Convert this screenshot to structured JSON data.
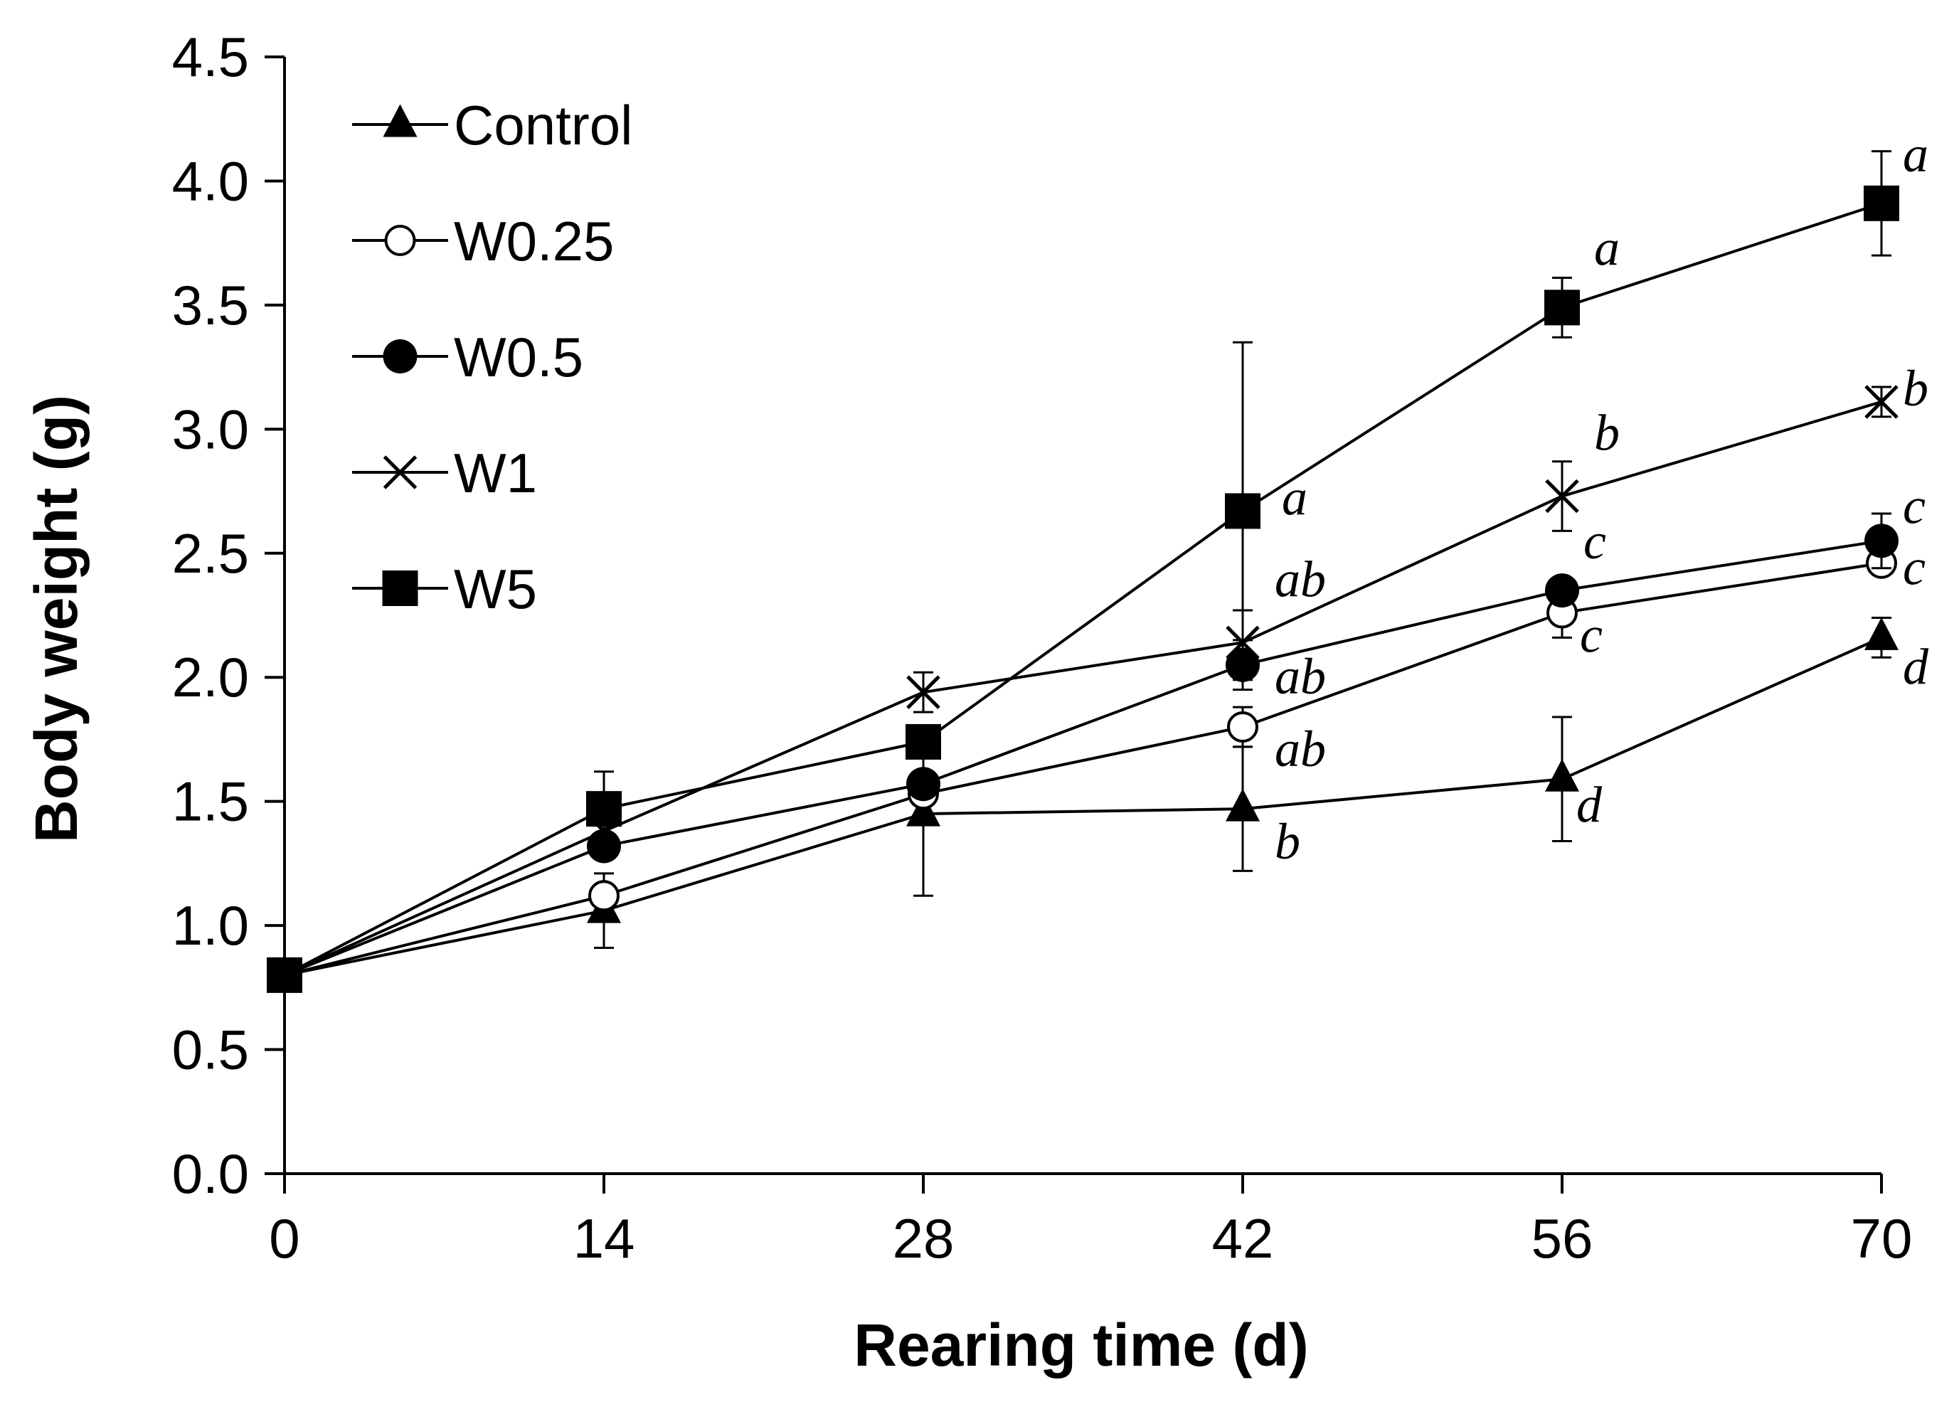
{
  "chart_data": {
    "type": "line",
    "title": "",
    "xlabel": "Rearing time (d)",
    "ylabel": "Body weight (g)",
    "x": [
      0,
      14,
      28,
      42,
      56,
      70
    ],
    "xlim": [
      0,
      70
    ],
    "ylim": [
      0,
      4.5
    ],
    "yticks": [
      "0.0",
      "0.5",
      "1.0",
      "1.5",
      "2.0",
      "2.5",
      "3.0",
      "3.5",
      "4.0",
      "4.5"
    ],
    "xticks": [
      "0",
      "14",
      "28",
      "42",
      "56",
      "70"
    ],
    "legend_position": "top-left",
    "grid": false,
    "series": [
      {
        "name": "Control",
        "marker": "triangle",
        "values": [
          0.8,
          1.06,
          1.45,
          1.47,
          1.59,
          2.16
        ],
        "errors": [
          0,
          0.15,
          0.33,
          0.25,
          0.25,
          0.08
        ],
        "letters": [
          "",
          "",
          "",
          "b",
          "d",
          "d"
        ]
      },
      {
        "name": "W0.25",
        "marker": "open-circle",
        "values": [
          0.8,
          1.12,
          1.53,
          1.8,
          2.26,
          2.46
        ],
        "errors": [
          0,
          0.03,
          0.04,
          0.08,
          0.1,
          0.03
        ],
        "letters": [
          "",
          "",
          "",
          "ab",
          "c",
          "c"
        ]
      },
      {
        "name": "W0.5",
        "marker": "filled-circle",
        "values": [
          0.8,
          1.32,
          1.57,
          2.05,
          2.35,
          2.55
        ],
        "errors": [
          0,
          0.05,
          0.04,
          0.1,
          0.04,
          0.11
        ],
        "letters": [
          "",
          "",
          "",
          "ab",
          "c",
          "c"
        ]
      },
      {
        "name": "W1",
        "marker": "x",
        "values": [
          0.8,
          1.38,
          1.94,
          2.14,
          2.73,
          3.11
        ],
        "errors": [
          0,
          0.04,
          0.08,
          0.13,
          0.14,
          0.06
        ],
        "letters": [
          "",
          "",
          "",
          "ab",
          "b",
          "b"
        ]
      },
      {
        "name": "W5",
        "marker": "square",
        "values": [
          0.8,
          1.47,
          1.74,
          2.67,
          3.49,
          3.91
        ],
        "errors": [
          0,
          0.15,
          0.04,
          0.68,
          0.12,
          0.21
        ],
        "letters": [
          "",
          "",
          "",
          "a",
          "a",
          "a"
        ]
      }
    ]
  }
}
